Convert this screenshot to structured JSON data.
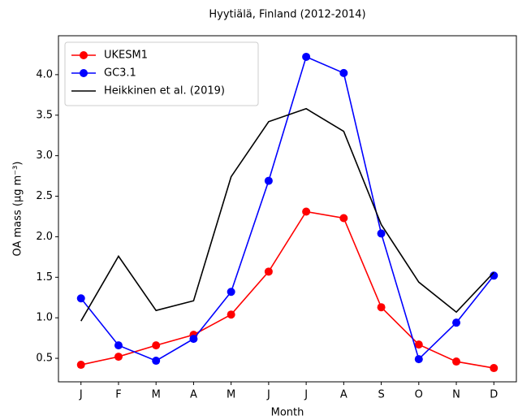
{
  "chart_data": {
    "type": "line",
    "title": "Hyytiälä, Finland (2012-2014)",
    "xlabel": "Month",
    "ylabel": "OA mass (μg m⁻³)",
    "categories": [
      "J",
      "F",
      "M",
      "A",
      "M",
      "J",
      "J",
      "A",
      "S",
      "O",
      "N",
      "D"
    ],
    "series": [
      {
        "name": "UKESM1",
        "color": "#ff0000",
        "marker": true,
        "values": [
          0.42,
          0.52,
          0.66,
          0.79,
          1.04,
          1.57,
          2.31,
          2.23,
          1.13,
          0.67,
          0.46,
          0.38
        ]
      },
      {
        "name": "GC3.1",
        "color": "#0000ff",
        "marker": true,
        "values": [
          1.24,
          0.66,
          0.47,
          0.74,
          1.32,
          2.69,
          4.22,
          4.02,
          2.04,
          0.49,
          0.94,
          1.52
        ]
      },
      {
        "name": "Heikkinen et al. (2019)",
        "color": "#000000",
        "marker": false,
        "values": [
          0.96,
          1.76,
          1.09,
          1.21,
          2.74,
          3.42,
          3.58,
          3.3,
          2.15,
          1.44,
          1.07,
          1.56
        ]
      }
    ],
    "ylim": [
      0.21,
      4.48
    ],
    "yticks": [
      0.5,
      {
        "value": 1.0,
        "label": "1.0"
      },
      1.5,
      {
        "value": 2.0,
        "label": "2.0"
      },
      2.5,
      {
        "value": 3.0,
        "label": "3.0"
      },
      3.5,
      {
        "value": 4.0,
        "label": "4.0"
      }
    ],
    "legend": "upper left"
  }
}
